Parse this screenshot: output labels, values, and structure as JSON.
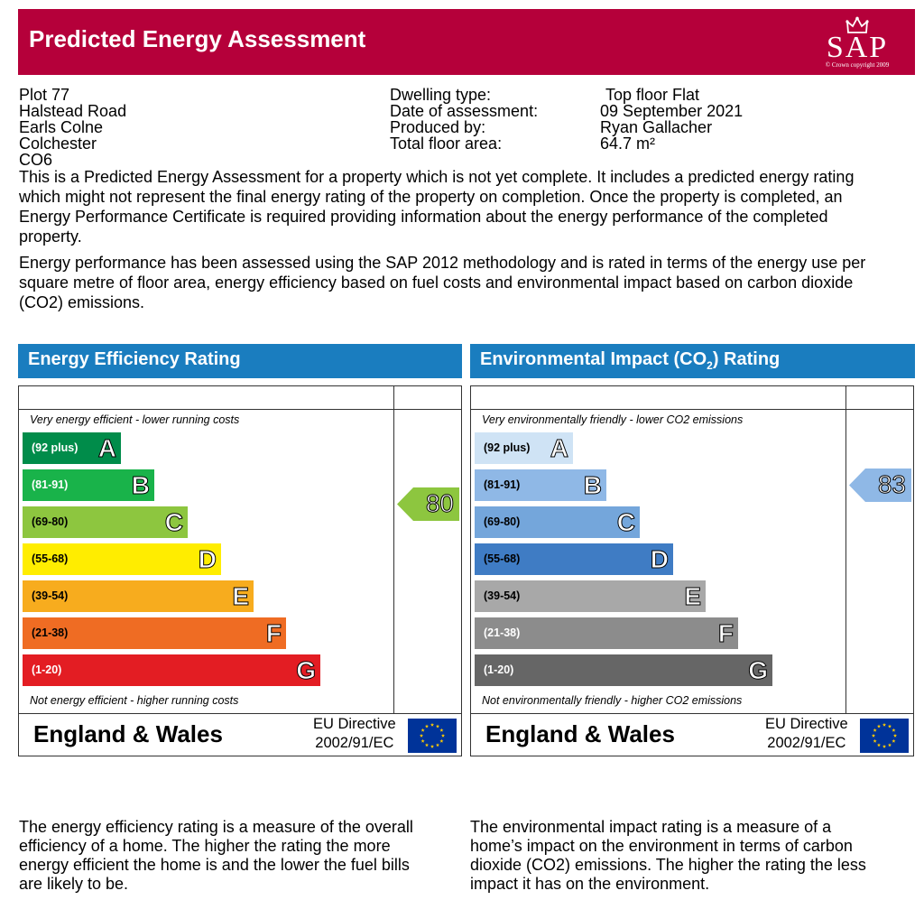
{
  "header": {
    "title": "Predicted Energy Assessment",
    "logo_text": "SAP",
    "logo_copyright": "© Crown copyright 2009"
  },
  "address": [
    "Plot 77",
    "Halstead Road",
    "Earls Colne",
    "Colchester",
    "CO6"
  ],
  "details": {
    "dwelling_type_label": "Dwelling type:",
    "dwelling_type": "Top floor Flat",
    "date_label": "Date of assessment:",
    "date": "09 September 2021",
    "produced_label": "Produced by:",
    "produced": "Ryan Gallacher",
    "area_label": "Total floor area:",
    "area": "64.7 m²"
  },
  "paragraphs": {
    "p1": "This is a Predicted Energy Assessment for a property which is not yet complete. It includes a predicted energy rating which might not represent the final energy rating of the property on completion. Once the property is completed, an Energy Performance Certificate is required providing information about the energy performance of the completed property.",
    "p2": "Energy performance has been assessed using the SAP 2012 methodology and is rated in terms of the energy use per square metre of floor area, energy efficiency based on fuel costs and environmental impact based on carbon dioxide (CO2) emissions."
  },
  "efficiency": {
    "title": "Energy Efficiency Rating",
    "top_note": "Very energy efficient - lower running costs",
    "bottom_note": "Not energy efficient - higher running costs",
    "region": "England & Wales",
    "directive_line1": "EU Directive",
    "directive_line2": "2002/91/EC",
    "current": "80",
    "current_color": "#8dc63f",
    "bands": [
      {
        "range": "(92 plus)",
        "letter": "A",
        "color": "#008c4a",
        "text_color": "#ffffff"
      },
      {
        "range": "(81-91)",
        "letter": "B",
        "color": "#19b34a",
        "text_color": "#ffffff"
      },
      {
        "range": "(69-80)",
        "letter": "C",
        "color": "#8dc63f",
        "text_color": "#000000"
      },
      {
        "range": "(55-68)",
        "letter": "D",
        "color": "#ffed00",
        "text_color": "#000000"
      },
      {
        "range": "(39-54)",
        "letter": "E",
        "color": "#f7ac1e",
        "text_color": "#000000"
      },
      {
        "range": "(21-38)",
        "letter": "F",
        "color": "#ef6c23",
        "text_color": "#000000"
      },
      {
        "range": "(1-20)",
        "letter": "G",
        "color": "#e31d23",
        "text_color": "#ffffff"
      }
    ]
  },
  "environment": {
    "title_prefix": "Environmental Impact (CO",
    "title_sub": "2",
    "title_suffix": ") Rating",
    "top_note": "Very environmentally friendly - lower CO2 emissions",
    "bottom_note": "Not environmentally friendly - higher CO2 emissions",
    "region": "England & Wales",
    "directive_line1": "EU Directive",
    "directive_line2": "2002/91/EC",
    "current": "83",
    "current_color": "#8fb8e6",
    "bands": [
      {
        "range": "(92 plus)",
        "letter": "A",
        "color": "#cfe3f5",
        "text_color": "#000000"
      },
      {
        "range": "(81-91)",
        "letter": "B",
        "color": "#8fb8e6",
        "text_color": "#000000"
      },
      {
        "range": "(69-80)",
        "letter": "C",
        "color": "#74a6db",
        "text_color": "#000000"
      },
      {
        "range": "(55-68)",
        "letter": "D",
        "color": "#3f7cc4",
        "text_color": "#000000"
      },
      {
        "range": "(39-54)",
        "letter": "E",
        "color": "#a8a8a8",
        "text_color": "#000000"
      },
      {
        "range": "(21-38)",
        "letter": "F",
        "color": "#8c8c8c",
        "text_color": "#ffffff"
      },
      {
        "range": "(1-20)",
        "letter": "G",
        "color": "#666666",
        "text_color": "#ffffff"
      }
    ]
  },
  "explanations": {
    "efficiency": "The energy efficiency rating is a measure of the overall efficiency of a home. The higher the rating the more energy efficient the home is and the lower the fuel bills are likely to be.",
    "environment": "The environmental impact rating is a measure of a home’s impact on the environment in terms of carbon dioxide (CO2) emissions. The higher the rating the less impact it has on the environment."
  }
}
